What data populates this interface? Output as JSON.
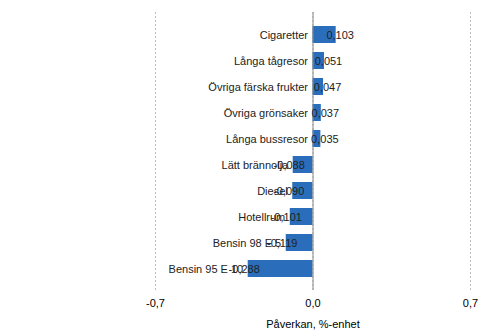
{
  "chart_data": {
    "type": "bar",
    "orientation": "horizontal",
    "categories": [
      "Cigaretter",
      "Långa tågresor",
      "Övriga färska frukter",
      "Övriga grönsaker",
      "Långa bussresor",
      "Lätt brännolja",
      "Diesel",
      "Hotellrum",
      "Bensin 98 E 5",
      "Bensin 95 E 10"
    ],
    "values": [
      0.103,
      0.051,
      0.047,
      0.037,
      0.035,
      -0.088,
      -0.09,
      -0.101,
      -0.119,
      -0.288
    ],
    "value_labels": [
      "0,103",
      "0,051",
      "0,047",
      "0,037",
      "0,035",
      "-0,088",
      "-0,090",
      "-0,101",
      "-0,119",
      "-0,288"
    ],
    "data_labels": true,
    "color": "#2a6ebb",
    "xlabel": "Påverkan, %-enhet",
    "xlim": [
      -0.7,
      0.7
    ],
    "xticks": [
      {
        "value": -0.7,
        "label": "-0,7"
      },
      {
        "value": 0,
        "label": "0,0"
      },
      {
        "value": 0.7,
        "label": "0,7"
      }
    ],
    "grid": true
  }
}
